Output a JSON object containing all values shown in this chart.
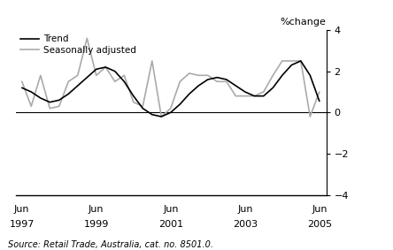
{
  "ylabel_right": "%change",
  "source": "Source: Retail Trade, Australia, cat. no. 8501.0.",
  "ylim": [
    -4,
    4
  ],
  "yticks": [
    -4,
    -2,
    0,
    2,
    4
  ],
  "xlim_start": 1997.25,
  "xlim_end": 2005.6,
  "xtick_positions": [
    1997.417,
    1999.417,
    2001.417,
    2003.417,
    2005.417
  ],
  "xtick_labels_top": [
    "Jun",
    "Jun",
    "Jun",
    "Jun",
    "Jun"
  ],
  "xtick_labels_bottom": [
    "1997",
    "1999",
    "2001",
    "2003",
    "2005"
  ],
  "trend_color": "#000000",
  "seas_color": "#aaaaaa",
  "trend_lw": 1.2,
  "seas_lw": 1.2,
  "legend_trend": "Trend",
  "legend_seas": "Seasonally adjusted",
  "trend_x": [
    1997.417,
    1997.667,
    1997.917,
    1998.167,
    1998.417,
    1998.667,
    1998.917,
    1999.167,
    1999.417,
    1999.667,
    1999.917,
    2000.167,
    2000.417,
    2000.667,
    2000.917,
    2001.167,
    2001.417,
    2001.667,
    2001.917,
    2002.167,
    2002.417,
    2002.667,
    2002.917,
    2003.167,
    2003.417,
    2003.667,
    2003.917,
    2004.167,
    2004.417,
    2004.667,
    2004.917,
    2005.167,
    2005.417
  ],
  "trend_y": [
    1.2,
    1.0,
    0.7,
    0.5,
    0.6,
    0.9,
    1.3,
    1.7,
    2.1,
    2.2,
    2.0,
    1.5,
    0.8,
    0.2,
    -0.1,
    -0.2,
    0.0,
    0.4,
    0.9,
    1.3,
    1.6,
    1.7,
    1.6,
    1.3,
    1.0,
    0.8,
    0.8,
    1.2,
    1.8,
    2.3,
    2.5,
    1.8,
    0.55
  ],
  "seas_x": [
    1997.417,
    1997.667,
    1997.917,
    1998.167,
    1998.417,
    1998.667,
    1998.917,
    1999.167,
    1999.417,
    1999.667,
    1999.917,
    2000.167,
    2000.417,
    2000.667,
    2000.917,
    2001.167,
    2001.417,
    2001.667,
    2001.917,
    2002.167,
    2002.417,
    2002.667,
    2002.917,
    2003.167,
    2003.417,
    2003.667,
    2003.917,
    2004.167,
    2004.417,
    2004.667,
    2004.917,
    2005.167,
    2005.417
  ],
  "seas_y": [
    1.5,
    0.3,
    1.8,
    0.2,
    0.3,
    1.5,
    1.8,
    3.6,
    1.8,
    2.2,
    1.5,
    1.8,
    0.5,
    0.3,
    2.5,
    -0.2,
    0.2,
    1.5,
    1.9,
    1.8,
    1.8,
    1.5,
    1.5,
    0.8,
    0.8,
    0.8,
    1.0,
    1.8,
    2.5,
    2.5,
    2.5,
    -0.2,
    1.0
  ]
}
